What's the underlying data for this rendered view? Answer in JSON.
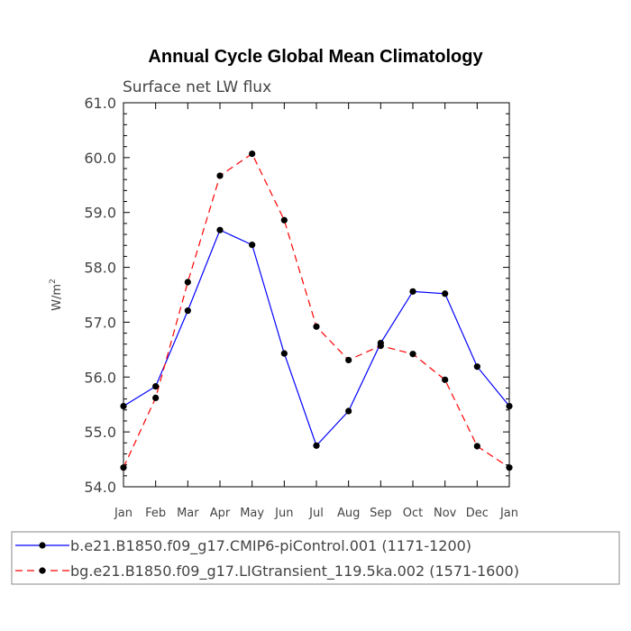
{
  "chart_data": {
    "type": "line",
    "title": "Annual Cycle Global Mean Climatology",
    "subtitle": "Surface net LW flux",
    "ylabel": "W/m",
    "ylabel_superscript": "2",
    "xlabel": "",
    "categories": [
      "Jan",
      "Feb",
      "Mar",
      "Apr",
      "May",
      "Jun",
      "Jul",
      "Aug",
      "Sep",
      "Oct",
      "Nov",
      "Dec",
      "Jan"
    ],
    "ylim": [
      54.0,
      61.0
    ],
    "yticks": [
      "54.0",
      "55.0",
      "56.0",
      "57.0",
      "58.0",
      "59.0",
      "60.0",
      "61.0"
    ],
    "series": [
      {
        "name": "b.e21.B1850.f09_g17.CMIP6-piControl.001 (1171-1200)",
        "color": "#0000ff",
        "dash": "solid",
        "values": [
          55.47,
          55.83,
          57.21,
          58.68,
          58.41,
          56.43,
          54.75,
          55.38,
          56.62,
          57.56,
          57.52,
          56.19,
          55.47
        ]
      },
      {
        "name": "bg.e21.B1850.f09_g17.LIGtransient_119.5ka.002 (1571-1600)",
        "color": "#ff0000",
        "dash": "dashed",
        "values": [
          54.35,
          55.62,
          57.73,
          59.67,
          60.07,
          58.86,
          56.92,
          56.31,
          56.57,
          56.42,
          55.95,
          54.74,
          54.35
        ]
      }
    ]
  }
}
